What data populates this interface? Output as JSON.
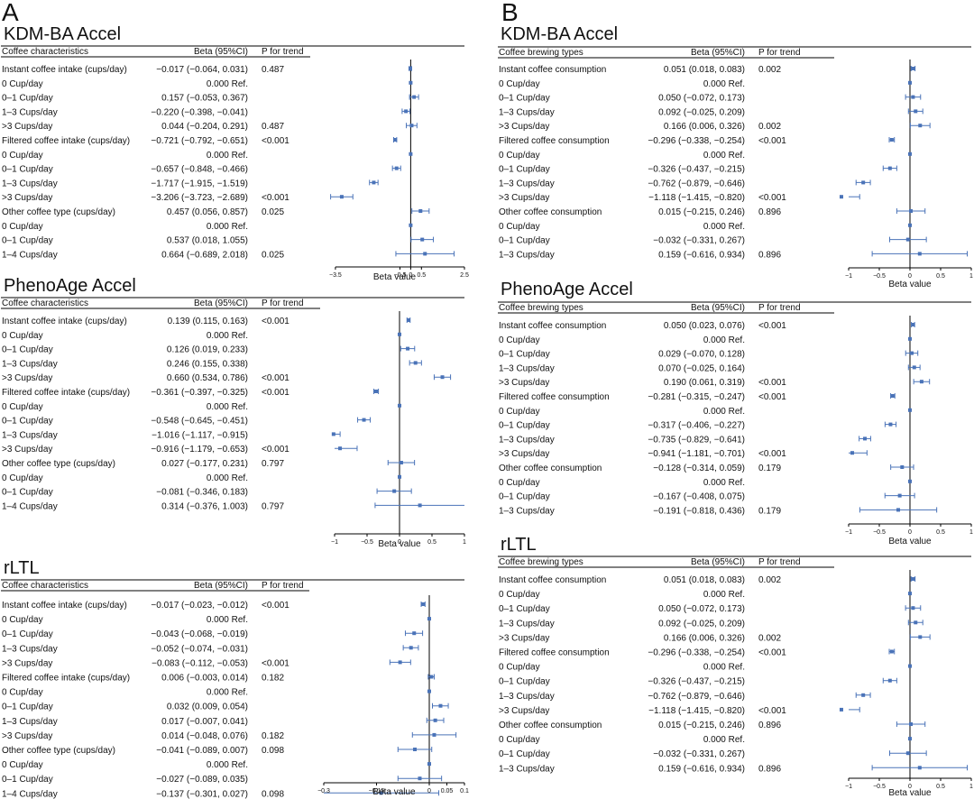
{
  "panel_labels": [
    "A",
    "B"
  ],
  "colors": {
    "point": "#4a73b8",
    "line": "#000000",
    "rule": "#000000",
    "text": "#111111"
  },
  "chart_data": [
    {
      "type": "forest",
      "panel": "A",
      "title": "KDM-BA Accel",
      "headers": [
        "Coffee characteristics",
        "Beta (95%CI)",
        "P for trend"
      ],
      "xlabel": "Beta value",
      "xlim": [
        -4.0,
        2.5
      ],
      "xticks": [
        -3.5,
        -0.5,
        0,
        0.5,
        2.5
      ],
      "rows": [
        {
          "label": "Instant coffee intake (cups/day)",
          "ci": "−0.017 (−0.064, 0.031)",
          "p": "0.487",
          "beta": -0.017,
          "lo": -0.064,
          "hi": 0.031
        },
        {
          "label": "0 Cup/day",
          "ci": "0.000 Ref.",
          "p": "",
          "beta": 0,
          "lo": 0,
          "hi": 0
        },
        {
          "label": "0–1 Cup/day",
          "ci": "0.157 (−0.053, 0.367)",
          "p": "",
          "beta": 0.157,
          "lo": -0.053,
          "hi": 0.367
        },
        {
          "label": "1–3 Cups/day",
          "ci": "−0.220 (−0.398, −0.041)",
          "p": "",
          "beta": -0.22,
          "lo": -0.398,
          "hi": -0.041
        },
        {
          "label": ">3 Cups/day",
          "ci": "0.044 (−0.204, 0.291)",
          "p": "0.487",
          "beta": 0.044,
          "lo": -0.204,
          "hi": 0.291
        },
        {
          "label": "Filtered coffee intake (cups/day)",
          "ci": "−0.721 (−0.792, −0.651)",
          "p": "<0.001",
          "beta": -0.721,
          "lo": -0.792,
          "hi": -0.651
        },
        {
          "label": "0 Cup/day",
          "ci": "0.000 Ref.",
          "p": "",
          "beta": 0,
          "lo": 0,
          "hi": 0
        },
        {
          "label": "0–1 Cup/day",
          "ci": "−0.657 (−0.848, −0.466)",
          "p": "",
          "beta": -0.657,
          "lo": -0.848,
          "hi": -0.466
        },
        {
          "label": "1–3 Cups/day",
          "ci": "−1.717 (−1.915, −1.519)",
          "p": "",
          "beta": -1.717,
          "lo": -1.915,
          "hi": -1.519
        },
        {
          "label": ">3 Cups/day",
          "ci": "−3.206 (−3.723, −2.689)",
          "p": "<0.001",
          "beta": -3.206,
          "lo": -3.723,
          "hi": -2.689
        },
        {
          "label": "Other coffee type (cups/day)",
          "ci": "0.457 (0.056, 0.857)",
          "p": "0.025",
          "beta": 0.457,
          "lo": 0.056,
          "hi": 0.857
        },
        {
          "label": "0 Cup/day",
          "ci": "0.000 Ref.",
          "p": "",
          "beta": 0,
          "lo": 0,
          "hi": 0
        },
        {
          "label": "0–1 Cup/day",
          "ci": "0.537 (0.018, 1.055)",
          "p": "",
          "beta": 0.537,
          "lo": 0.018,
          "hi": 1.055
        },
        {
          "label": "1–4 Cups/day",
          "ci": "0.664 (−0.689, 2.018)",
          "p": "0.025",
          "beta": 0.664,
          "lo": -0.689,
          "hi": 2.018
        }
      ]
    },
    {
      "type": "forest",
      "panel": "A",
      "title": "PhenoAge Accel",
      "headers": [
        "Coffee characteristics",
        "Beta (95%CI)",
        "P for trend"
      ],
      "xlabel": "Beta value",
      "xlim": [
        -1.0,
        1.0
      ],
      "xticks": [
        -1,
        -0.5,
        0,
        0.5,
        1
      ],
      "rows": [
        {
          "label": "Instant coffee intake (cups/day)",
          "ci": "0.139 (0.115, 0.163)",
          "p": "<0.001",
          "beta": 0.139,
          "lo": 0.115,
          "hi": 0.163
        },
        {
          "label": "0 Cup/day",
          "ci": "0.000 Ref.",
          "p": "",
          "beta": 0,
          "lo": 0,
          "hi": 0
        },
        {
          "label": "0–1 Cup/day",
          "ci": "0.126 (0.019, 0.233)",
          "p": "",
          "beta": 0.126,
          "lo": 0.019,
          "hi": 0.233
        },
        {
          "label": "1–3 Cups/day",
          "ci": "0.246 (0.155, 0.338)",
          "p": "",
          "beta": 0.246,
          "lo": 0.155,
          "hi": 0.338
        },
        {
          "label": ">3 Cups/day",
          "ci": "0.660 (0.534, 0.786)",
          "p": "<0.001",
          "beta": 0.66,
          "lo": 0.534,
          "hi": 0.786
        },
        {
          "label": "Filtered coffee intake (cups/day)",
          "ci": "−0.361 (−0.397, −0.325)",
          "p": "<0.001",
          "beta": -0.361,
          "lo": -0.397,
          "hi": -0.325
        },
        {
          "label": "0 Cup/day",
          "ci": "0.000 Ref.",
          "p": "",
          "beta": 0,
          "lo": 0,
          "hi": 0
        },
        {
          "label": "0–1 Cup/day",
          "ci": "−0.548 (−0.645, −0.451)",
          "p": "",
          "beta": -0.548,
          "lo": -0.645,
          "hi": -0.451
        },
        {
          "label": "1–3 Cups/day",
          "ci": "−1.016 (−1.117, −0.915)",
          "p": "",
          "beta": -1.016,
          "lo": -1.117,
          "hi": -0.915
        },
        {
          "label": ">3 Cups/day",
          "ci": "−0.916 (−1.179, −0.653)",
          "p": "<0.001",
          "beta": -0.916,
          "lo": -1.179,
          "hi": -0.653
        },
        {
          "label": "Other coffee type (cups/day)",
          "ci": "0.027 (−0.177, 0.231)",
          "p": "0.797",
          "beta": 0.027,
          "lo": -0.177,
          "hi": 0.231
        },
        {
          "label": "0 Cup/day",
          "ci": "0.000 Ref.",
          "p": "",
          "beta": 0,
          "lo": 0,
          "hi": 0
        },
        {
          "label": "0–1 Cup/day",
          "ci": "−0.081 (−0.346, 0.183)",
          "p": "",
          "beta": -0.081,
          "lo": -0.346,
          "hi": 0.183
        },
        {
          "label": "1–4 Cups/day",
          "ci": "0.314 (−0.376, 1.003)",
          "p": "0.797",
          "beta": 0.314,
          "lo": -0.376,
          "hi": 1.003
        }
      ]
    },
    {
      "type": "forest",
      "panel": "A",
      "title": "rLTL",
      "headers": [
        "Coffee characteristics",
        "Beta (95%CI)",
        "P for trend"
      ],
      "xlabel": "Beta value",
      "xlim": [
        -0.3,
        0.1
      ],
      "xticks": [
        -0.3,
        -0.15,
        0,
        0.05,
        0.1
      ],
      "rows": [
        {
          "label": "Instant coffee intake (cups/day)",
          "ci": "−0.017 (−0.023, −0.012)",
          "p": "<0.001",
          "beta": -0.017,
          "lo": -0.023,
          "hi": -0.012
        },
        {
          "label": "0 Cup/day",
          "ci": "0.000 Ref.",
          "p": "",
          "beta": 0,
          "lo": 0,
          "hi": 0
        },
        {
          "label": "0–1 Cup/day",
          "ci": "−0.043 (−0.068, −0.019)",
          "p": "",
          "beta": -0.043,
          "lo": -0.068,
          "hi": -0.019
        },
        {
          "label": "1–3 Cups/day",
          "ci": "−0.052 (−0.074, −0.031)",
          "p": "",
          "beta": -0.052,
          "lo": -0.074,
          "hi": -0.031
        },
        {
          "label": ">3 Cups/day",
          "ci": "−0.083 (−0.112, −0.053)",
          "p": "<0.001",
          "beta": -0.083,
          "lo": -0.112,
          "hi": -0.053
        },
        {
          "label": "Filtered coffee intake (cups/day)",
          "ci": "0.006 (−0.003, 0.014)",
          "p": "0.182",
          "beta": 0.006,
          "lo": -0.003,
          "hi": 0.014
        },
        {
          "label": "0 Cup/day",
          "ci": "0.000 Ref.",
          "p": "",
          "beta": 0,
          "lo": 0,
          "hi": 0
        },
        {
          "label": "0–1 Cup/day",
          "ci": "0.032 (0.009, 0.054)",
          "p": "",
          "beta": 0.032,
          "lo": 0.009,
          "hi": 0.054
        },
        {
          "label": "1–3 Cups/day",
          "ci": "0.017 (−0.007, 0.041)",
          "p": "",
          "beta": 0.017,
          "lo": -0.007,
          "hi": 0.041
        },
        {
          "label": ">3 Cups/day",
          "ci": "0.014 (−0.048, 0.076)",
          "p": "0.182",
          "beta": 0.014,
          "lo": -0.048,
          "hi": 0.076
        },
        {
          "label": "Other coffee type (cups/day)",
          "ci": "−0.041 (−0.089, 0.007)",
          "p": "0.098",
          "beta": -0.041,
          "lo": -0.089,
          "hi": 0.007
        },
        {
          "label": "0 Cup/day",
          "ci": "0.000 Ref.",
          "p": "",
          "beta": 0,
          "lo": 0,
          "hi": 0
        },
        {
          "label": "0–1 Cup/day",
          "ci": "−0.027 (−0.089, 0.035)",
          "p": "",
          "beta": -0.027,
          "lo": -0.089,
          "hi": 0.035
        },
        {
          "label": "1–4 Cups/day",
          "ci": "−0.137 (−0.301, 0.027)",
          "p": "0.098",
          "beta": -0.137,
          "lo": -0.301,
          "hi": 0.027
        }
      ]
    },
    {
      "type": "forest",
      "panel": "B",
      "title": "KDM-BA Accel",
      "headers": [
        "Coffee brewing types",
        "Beta (95%CI)",
        "P for trend"
      ],
      "xlabel": "Beta value",
      "xlim": [
        -1.0,
        1.0
      ],
      "xticks": [
        -1,
        -0.5,
        0,
        0.5,
        1
      ],
      "rows": [
        {
          "label": "Instant coffee consumption",
          "ci": "0.051 (0.018, 0.083)",
          "p": "0.002",
          "beta": 0.051,
          "lo": 0.018,
          "hi": 0.083
        },
        {
          "label": "0 Cup/day",
          "ci": "0.000 Ref.",
          "p": "",
          "beta": 0,
          "lo": 0,
          "hi": 0
        },
        {
          "label": "0–1 Cup/day",
          "ci": "0.050 (−0.072, 0.173)",
          "p": "",
          "beta": 0.05,
          "lo": -0.072,
          "hi": 0.173
        },
        {
          "label": "1–3 Cups/day",
          "ci": "0.092 (−0.025, 0.209)",
          "p": "",
          "beta": 0.092,
          "lo": -0.025,
          "hi": 0.209
        },
        {
          "label": ">3 Cups/day",
          "ci": "0.166 (0.006, 0.326)",
          "p": "0.002",
          "beta": 0.166,
          "lo": 0.006,
          "hi": 0.326
        },
        {
          "label": "Filtered coffee consumption",
          "ci": "−0.296 (−0.338, −0.254)",
          "p": "<0.001",
          "beta": -0.296,
          "lo": -0.338,
          "hi": -0.254
        },
        {
          "label": "0 Cup/day",
          "ci": "0.000 Ref.",
          "p": "",
          "beta": 0,
          "lo": 0,
          "hi": 0
        },
        {
          "label": "0–1 Cup/day",
          "ci": "−0.326 (−0.437, −0.215)",
          "p": "",
          "beta": -0.326,
          "lo": -0.437,
          "hi": -0.215
        },
        {
          "label": "1–3 Cups/day",
          "ci": "−0.762 (−0.879, −0.646)",
          "p": "",
          "beta": -0.762,
          "lo": -0.879,
          "hi": -0.646
        },
        {
          "label": ">3 Cups/day",
          "ci": "−1.118 (−1.415, −0.820)",
          "p": "<0.001",
          "beta": -1.118,
          "lo": -1.415,
          "hi": -0.82
        },
        {
          "label": "Other coffee consumption",
          "ci": "0.015 (−0.215, 0.246)",
          "p": "0.896",
          "beta": 0.015,
          "lo": -0.215,
          "hi": 0.246
        },
        {
          "label": "0 Cup/day",
          "ci": "0.000 Ref.",
          "p": "",
          "beta": 0,
          "lo": 0,
          "hi": 0
        },
        {
          "label": "0–1 Cup/day",
          "ci": "−0.032 (−0.331, 0.267)",
          "p": "",
          "beta": -0.032,
          "lo": -0.331,
          "hi": 0.267
        },
        {
          "label": "1–3 Cups/day",
          "ci": "0.159 (−0.616, 0.934)",
          "p": "0.896",
          "beta": 0.159,
          "lo": -0.616,
          "hi": 0.934
        }
      ]
    },
    {
      "type": "forest",
      "panel": "B",
      "title": "PhenoAge Accel",
      "headers": [
        "Coffee brewing types",
        "Beta (95%CI)",
        "P for trend"
      ],
      "xlabel": "Beta value",
      "xlim": [
        -1.0,
        1.0
      ],
      "xticks": [
        -1,
        -0.5,
        0,
        0.5,
        1
      ],
      "rows": [
        {
          "label": "Instant coffee consumption",
          "ci": "0.050 (0.023, 0.076)",
          "p": "<0.001",
          "beta": 0.05,
          "lo": 0.023,
          "hi": 0.076
        },
        {
          "label": "0 Cup/day",
          "ci": "0.000 Ref.",
          "p": "",
          "beta": 0,
          "lo": 0,
          "hi": 0
        },
        {
          "label": "0–1 Cup/day",
          "ci": "0.029 (−0.070, 0.128)",
          "p": "",
          "beta": 0.029,
          "lo": -0.07,
          "hi": 0.128
        },
        {
          "label": "1–3 Cups/day",
          "ci": "0.070 (−0.025, 0.164)",
          "p": "",
          "beta": 0.07,
          "lo": -0.025,
          "hi": 0.164
        },
        {
          "label": ">3 Cups/day",
          "ci": "0.190 (0.061, 0.319)",
          "p": "<0.001",
          "beta": 0.19,
          "lo": 0.061,
          "hi": 0.319
        },
        {
          "label": "Filtered coffee consumption",
          "ci": "−0.281 (−0.315, −0.247)",
          "p": "<0.001",
          "beta": -0.281,
          "lo": -0.315,
          "hi": -0.247
        },
        {
          "label": "0 Cup/day",
          "ci": "0.000 Ref.",
          "p": "",
          "beta": 0,
          "lo": 0,
          "hi": 0
        },
        {
          "label": "0–1 Cup/day",
          "ci": "−0.317 (−0.406, −0.227)",
          "p": "",
          "beta": -0.317,
          "lo": -0.406,
          "hi": -0.227
        },
        {
          "label": "1–3 Cups/day",
          "ci": "−0.735 (−0.829, −0.641)",
          "p": "",
          "beta": -0.735,
          "lo": -0.829,
          "hi": -0.641
        },
        {
          "label": ">3 Cups/day",
          "ci": "−0.941 (−1.181, −0.701)",
          "p": "<0.001",
          "beta": -0.941,
          "lo": -1.181,
          "hi": -0.701
        },
        {
          "label": "Other coffee consumption",
          "ci": "−0.128 (−0.314, 0.059)",
          "p": "0.179",
          "beta": -0.128,
          "lo": -0.314,
          "hi": 0.059
        },
        {
          "label": "0 Cup/day",
          "ci": "0.000 Ref.",
          "p": "",
          "beta": 0,
          "lo": 0,
          "hi": 0
        },
        {
          "label": "0–1 Cup/day",
          "ci": "−0.167 (−0.408, 0.075)",
          "p": "",
          "beta": -0.167,
          "lo": -0.408,
          "hi": 0.075
        },
        {
          "label": "1–3 Cups/day",
          "ci": "−0.191 (−0.818, 0.436)",
          "p": "0.179",
          "beta": -0.191,
          "lo": -0.818,
          "hi": 0.436
        }
      ]
    },
    {
      "type": "forest",
      "panel": "B",
      "title": "rLTL",
      "headers": [
        "Coffee brewing types",
        "Beta (95%CI)",
        "P for trend"
      ],
      "xlabel": "Beta value",
      "xlim": [
        -1.0,
        1.0
      ],
      "xticks": [
        -1,
        -0.5,
        0,
        0.5,
        1
      ],
      "rows": [
        {
          "label": "Instant coffee consumption",
          "ci": "0.051 (0.018, 0.083)",
          "p": "0.002",
          "beta": 0.051,
          "lo": 0.018,
          "hi": 0.083
        },
        {
          "label": "0 Cup/day",
          "ci": "0.000 Ref.",
          "p": "",
          "beta": 0,
          "lo": 0,
          "hi": 0
        },
        {
          "label": "0–1 Cup/day",
          "ci": "0.050 (−0.072, 0.173)",
          "p": "",
          "beta": 0.05,
          "lo": -0.072,
          "hi": 0.173
        },
        {
          "label": "1–3 Cups/day",
          "ci": "0.092 (−0.025, 0.209)",
          "p": "",
          "beta": 0.092,
          "lo": -0.025,
          "hi": 0.209
        },
        {
          "label": ">3 Cups/day",
          "ci": "0.166 (0.006, 0.326)",
          "p": "0.002",
          "beta": 0.166,
          "lo": 0.006,
          "hi": 0.326
        },
        {
          "label": "Filtered coffee consumption",
          "ci": "−0.296 (−0.338, −0.254)",
          "p": "<0.001",
          "beta": -0.296,
          "lo": -0.338,
          "hi": -0.254
        },
        {
          "label": "0 Cup/day",
          "ci": "0.000 Ref.",
          "p": "",
          "beta": 0,
          "lo": 0,
          "hi": 0
        },
        {
          "label": "0–1 Cup/day",
          "ci": "−0.326 (−0.437, −0.215)",
          "p": "",
          "beta": -0.326,
          "lo": -0.437,
          "hi": -0.215
        },
        {
          "label": "1–3 Cups/day",
          "ci": "−0.762 (−0.879, −0.646)",
          "p": "",
          "beta": -0.762,
          "lo": -0.879,
          "hi": -0.646
        },
        {
          "label": ">3 Cups/day",
          "ci": "−1.118 (−1.415, −0.820)",
          "p": "<0.001",
          "beta": -1.118,
          "lo": -1.415,
          "hi": -0.82
        },
        {
          "label": "Other coffee consumption",
          "ci": "0.015 (−0.215, 0.246)",
          "p": "0.896",
          "beta": 0.015,
          "lo": -0.215,
          "hi": 0.246
        },
        {
          "label": "0 Cup/day",
          "ci": "0.000 Ref.",
          "p": "",
          "beta": 0,
          "lo": 0,
          "hi": 0
        },
        {
          "label": "0–1 Cup/day",
          "ci": "−0.032 (−0.331, 0.267)",
          "p": "",
          "beta": -0.032,
          "lo": -0.331,
          "hi": 0.267
        },
        {
          "label": "1–3 Cups/day",
          "ci": "0.159 (−0.616, 0.934)",
          "p": "0.896",
          "beta": 0.159,
          "lo": -0.616,
          "hi": 0.934
        }
      ]
    }
  ]
}
